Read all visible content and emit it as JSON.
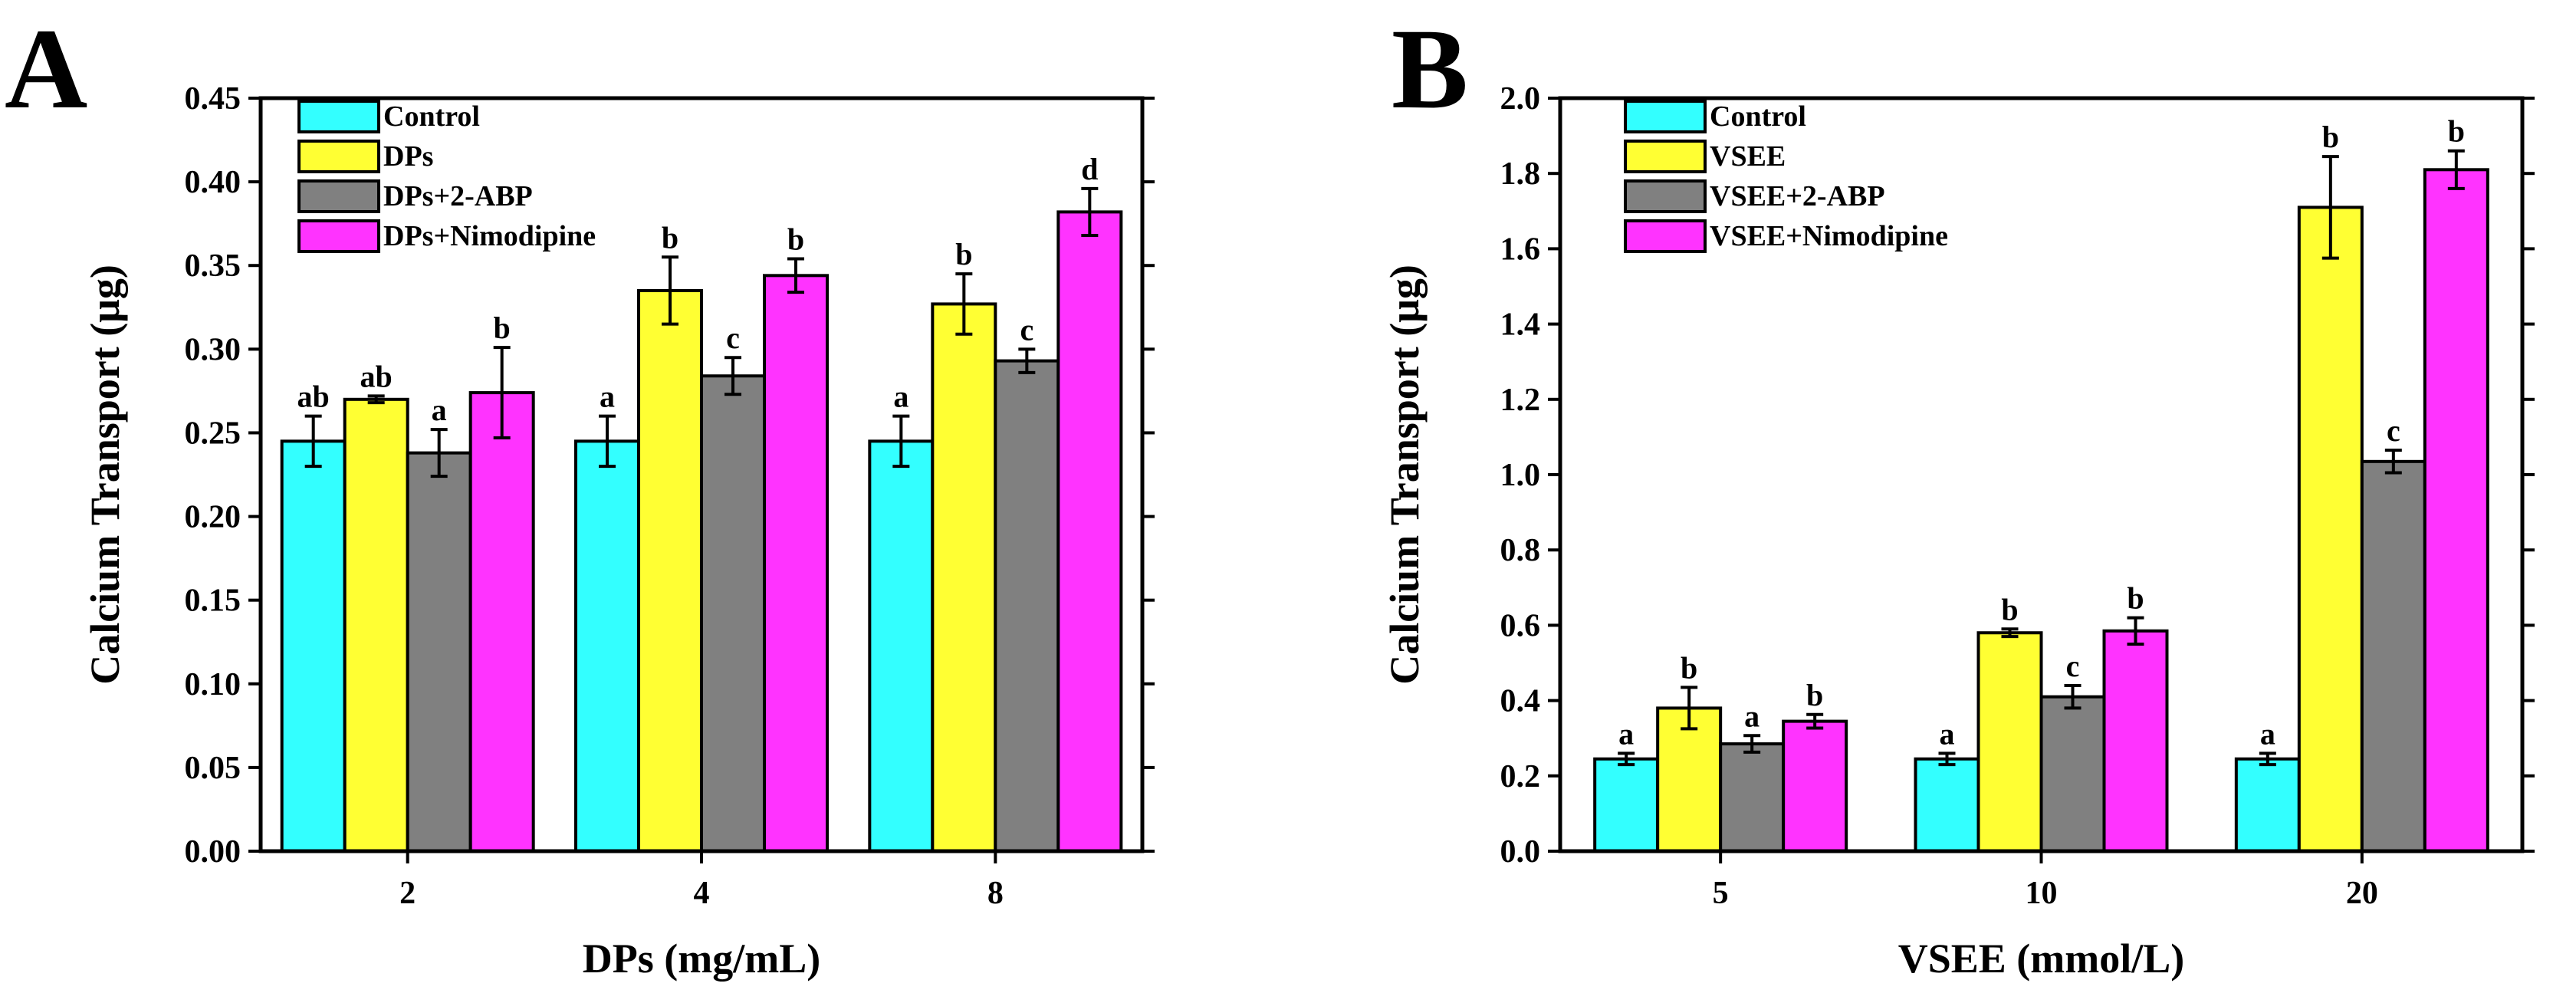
{
  "colors": {
    "control": "#33ffff",
    "treatment": "#ffff33",
    "antagonist_abp": "#808080",
    "antagonist_nimodipine": "#ff33ff",
    "axis": "#000000",
    "background": "#ffffff"
  },
  "chart_data": [
    {
      "panel": "A",
      "type": "bar",
      "title": "",
      "xlabel": "DPs (mg/mL)",
      "ylabel": "Calcium Transport (μg)",
      "ylim": [
        0,
        0.45
      ],
      "yticks": [
        "0.00",
        "0.05",
        "0.10",
        "0.15",
        "0.20",
        "0.25",
        "0.30",
        "0.35",
        "0.40",
        "0.45"
      ],
      "grid": false,
      "legend_position": "top-left",
      "categories": [
        "2",
        "4",
        "8"
      ],
      "series": [
        {
          "name": "Control",
          "color_key": "control",
          "values": [
            0.245,
            0.245,
            0.245
          ],
          "errors": [
            0.015,
            0.015,
            0.015
          ],
          "labels": [
            "ab",
            "a",
            "a"
          ]
        },
        {
          "name": "DPs",
          "color_key": "treatment",
          "values": [
            0.27,
            0.335,
            0.327
          ],
          "errors": [
            0.002,
            0.02,
            0.018
          ],
          "labels": [
            "ab",
            "b",
            "b"
          ]
        },
        {
          "name": "DPs+2-ABP",
          "color_key": "antagonist_abp",
          "values": [
            0.238,
            0.284,
            0.293
          ],
          "errors": [
            0.014,
            0.011,
            0.007
          ],
          "labels": [
            "a",
            "c",
            "c"
          ]
        },
        {
          "name": "DPs+Nimodipine",
          "color_key": "antagonist_nimodipine",
          "values": [
            0.274,
            0.344,
            0.382
          ],
          "errors": [
            0.027,
            0.01,
            0.014
          ],
          "labels": [
            "b",
            "b",
            "d"
          ]
        }
      ]
    },
    {
      "panel": "B",
      "type": "bar",
      "title": "",
      "xlabel": "VSEE (mmol/L)",
      "ylabel": "Calcium Transport (μg)",
      "ylim": [
        0,
        2.0
      ],
      "yticks": [
        "0.0",
        "0.2",
        "0.4",
        "0.6",
        "0.8",
        "1.0",
        "1.2",
        "1.4",
        "1.6",
        "1.8",
        "2.0"
      ],
      "grid": false,
      "legend_position": "top-left",
      "categories": [
        "5",
        "10",
        "20"
      ],
      "series": [
        {
          "name": "Control",
          "color_key": "control",
          "values": [
            0.245,
            0.245,
            0.245
          ],
          "errors": [
            0.015,
            0.015,
            0.015
          ],
          "labels": [
            "a",
            "a",
            "a"
          ]
        },
        {
          "name": "VSEE",
          "color_key": "treatment",
          "values": [
            0.38,
            0.58,
            1.71
          ],
          "errors": [
            0.055,
            0.01,
            0.135
          ],
          "labels": [
            "b",
            "b",
            "b"
          ]
        },
        {
          "name": "VSEE+2-ABP",
          "color_key": "antagonist_abp",
          "values": [
            0.285,
            0.41,
            1.035
          ],
          "errors": [
            0.022,
            0.03,
            0.03
          ],
          "labels": [
            "a",
            "c",
            "c"
          ]
        },
        {
          "name": "VSEE+Nimodipine",
          "color_key": "antagonist_nimodipine",
          "values": [
            0.345,
            0.585,
            1.81
          ],
          "errors": [
            0.018,
            0.035,
            0.05
          ],
          "labels": [
            "b",
            "b",
            "b"
          ]
        }
      ]
    }
  ]
}
